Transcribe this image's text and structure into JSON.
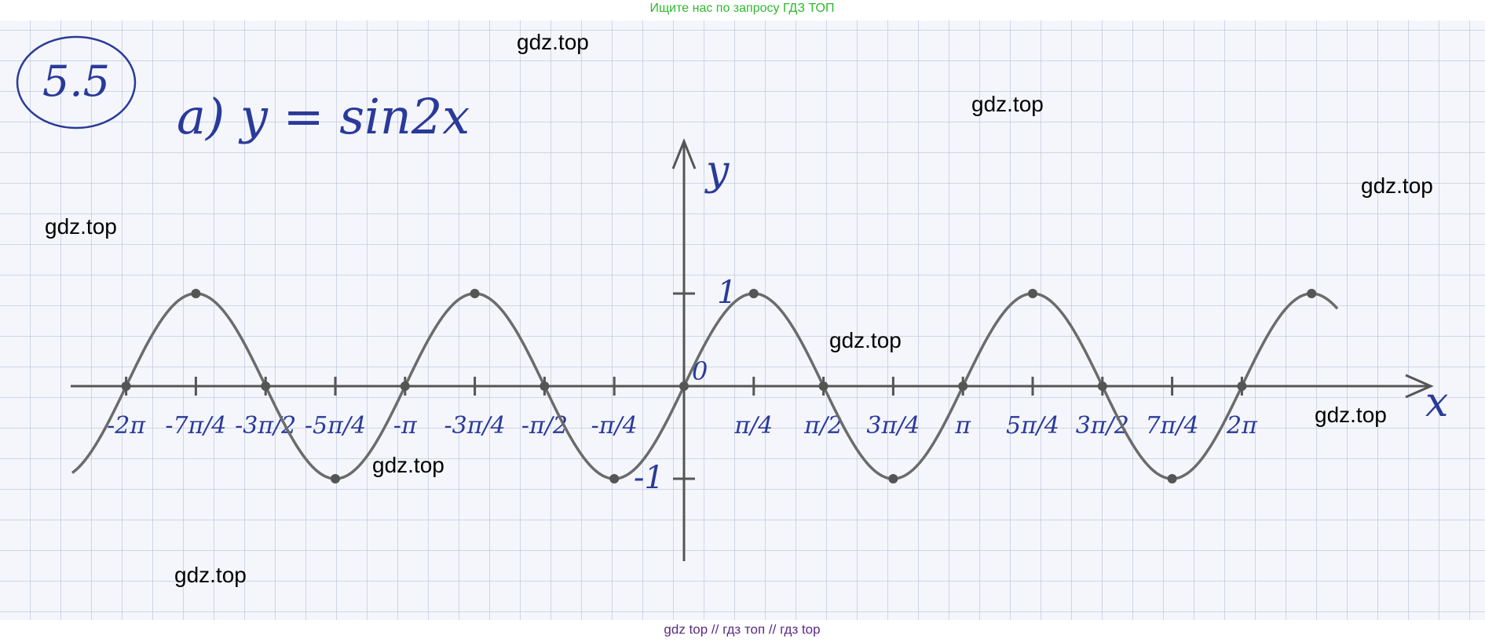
{
  "header": {
    "text": "Ищите нас по запросу ГДЗ ТОП"
  },
  "problem": {
    "number": "5.5",
    "title": "а) y = sin2x"
  },
  "graph": {
    "y_axis_label": "y",
    "x_axis_label": "x",
    "origin_label": "0",
    "y_tick_labels": [
      "1",
      "-1"
    ],
    "x_tick_labels": [
      "-2π",
      "-7π/4",
      "-3π/2",
      "-5π/4",
      "-π",
      "-3π/4",
      "-π/2",
      "-π/4",
      "π/4",
      "π/2",
      "3π/4",
      "π",
      "5π/4",
      "3π/2",
      "7π/4",
      "2π"
    ]
  },
  "watermarks": [
    "gdz.top",
    "gdz.top",
    "gdz.top",
    "gdz.top",
    "gdz.top",
    "gdz.top",
    "gdz.top",
    "gdz.top"
  ],
  "footer": {
    "text": "gdz top  //  гдз топ  //  гдз top"
  }
}
